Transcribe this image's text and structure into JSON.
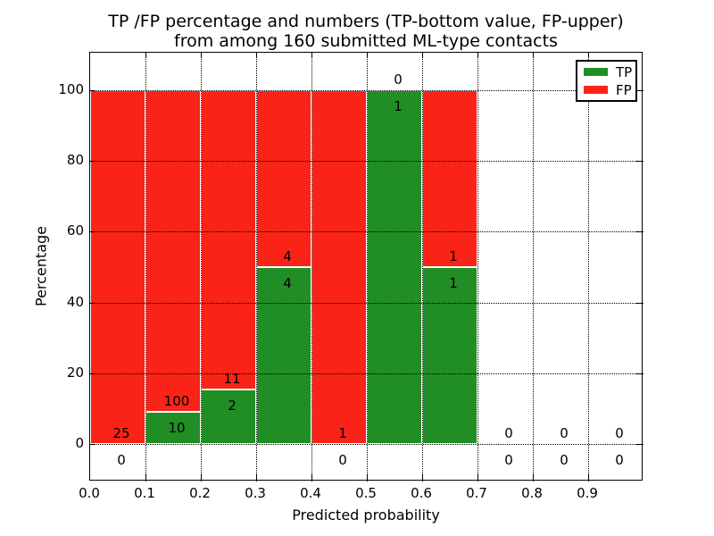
{
  "chart_data": {
    "type": "bar",
    "stacked": true,
    "title_lines": [
      "TP /FP percentage and numbers (TP-bottom value, FP-upper)",
      "from among 160 submitted ML-type contacts"
    ],
    "xlabel": "Predicted probability",
    "ylabel": "Percentage",
    "xlim": [
      0.0,
      1.0
    ],
    "ylim": [
      -11,
      110
    ],
    "grid": true,
    "bin_width": 0.1,
    "bin_starts": [
      0.0,
      0.1,
      0.2,
      0.3,
      0.4,
      0.5,
      0.6,
      0.7,
      0.8,
      0.9
    ],
    "x_tick_labels": [
      "0.0",
      "0.1",
      "0.2",
      "0.3",
      "0.4",
      "0.5",
      "0.6",
      "0.7",
      "0.8",
      "0.9"
    ],
    "y_tick_values": [
      0,
      20,
      40,
      60,
      80,
      100
    ],
    "y_tick_labels": [
      "0",
      "20",
      "40",
      "60",
      "80",
      "100"
    ],
    "series": [
      {
        "name": "TP",
        "color": "#208e24",
        "counts": [
          0,
          10,
          2,
          4,
          0,
          1,
          1,
          0,
          0,
          0
        ],
        "percent": [
          0,
          9.09,
          15.38,
          50,
          0,
          100,
          50,
          0,
          0,
          0
        ]
      },
      {
        "name": "FP",
        "color": "#fa2318",
        "counts": [
          25,
          100,
          11,
          4,
          1,
          0,
          1,
          0,
          0,
          0
        ],
        "percent": [
          100,
          90.91,
          84.62,
          50,
          100,
          0,
          50,
          0,
          0,
          0
        ]
      }
    ],
    "legend": {
      "position": "upper right",
      "entries": [
        "TP",
        "FP"
      ]
    }
  }
}
